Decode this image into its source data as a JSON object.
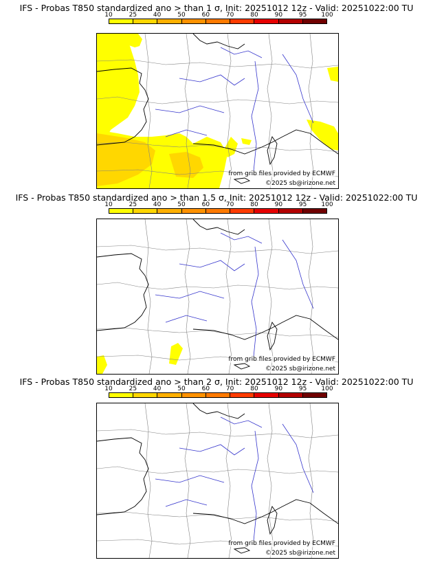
{
  "legend": {
    "labels": [
      "10",
      "25",
      "40",
      "50",
      "60",
      "70",
      "80",
      "90",
      "95",
      "100"
    ],
    "colors": [
      "#ffff00",
      "#ffd700",
      "#ffb000",
      "#ff9200",
      "#ff7a00",
      "#ff3c00",
      "#e60000",
      "#b30000",
      "#700000"
    ]
  },
  "colors": {
    "border": "#808080",
    "river": "#3333cc",
    "coast": "#000000",
    "prob": [
      "#ffff00",
      "#ffd700",
      "#ffb000"
    ]
  },
  "panels": [
    {
      "title": "IFS - Probas T850  standardized ano > than 1 σ, Init: 20251012 12z - Valid: 20251022:00 TU",
      "source": "from grib files provided by ECMWF",
      "copyright": "©2025 sb@irizone.net"
    },
    {
      "title": "IFS - Probas T850  standardized ano > than 1.5 σ, Init: 20251012 12z - Valid: 20251022:00 TU",
      "source": "from grib files provided by ECMWF",
      "copyright": "©2025 sb@irizone.net"
    },
    {
      "title": "IFS - Probas T850  standardized ano > than 2 σ, Init: 20251012 12z - Valid: 20251022:00 TU",
      "source": "from grib files provided by ECMWF",
      "copyright": "©2025 sb@irizone.net"
    }
  ]
}
